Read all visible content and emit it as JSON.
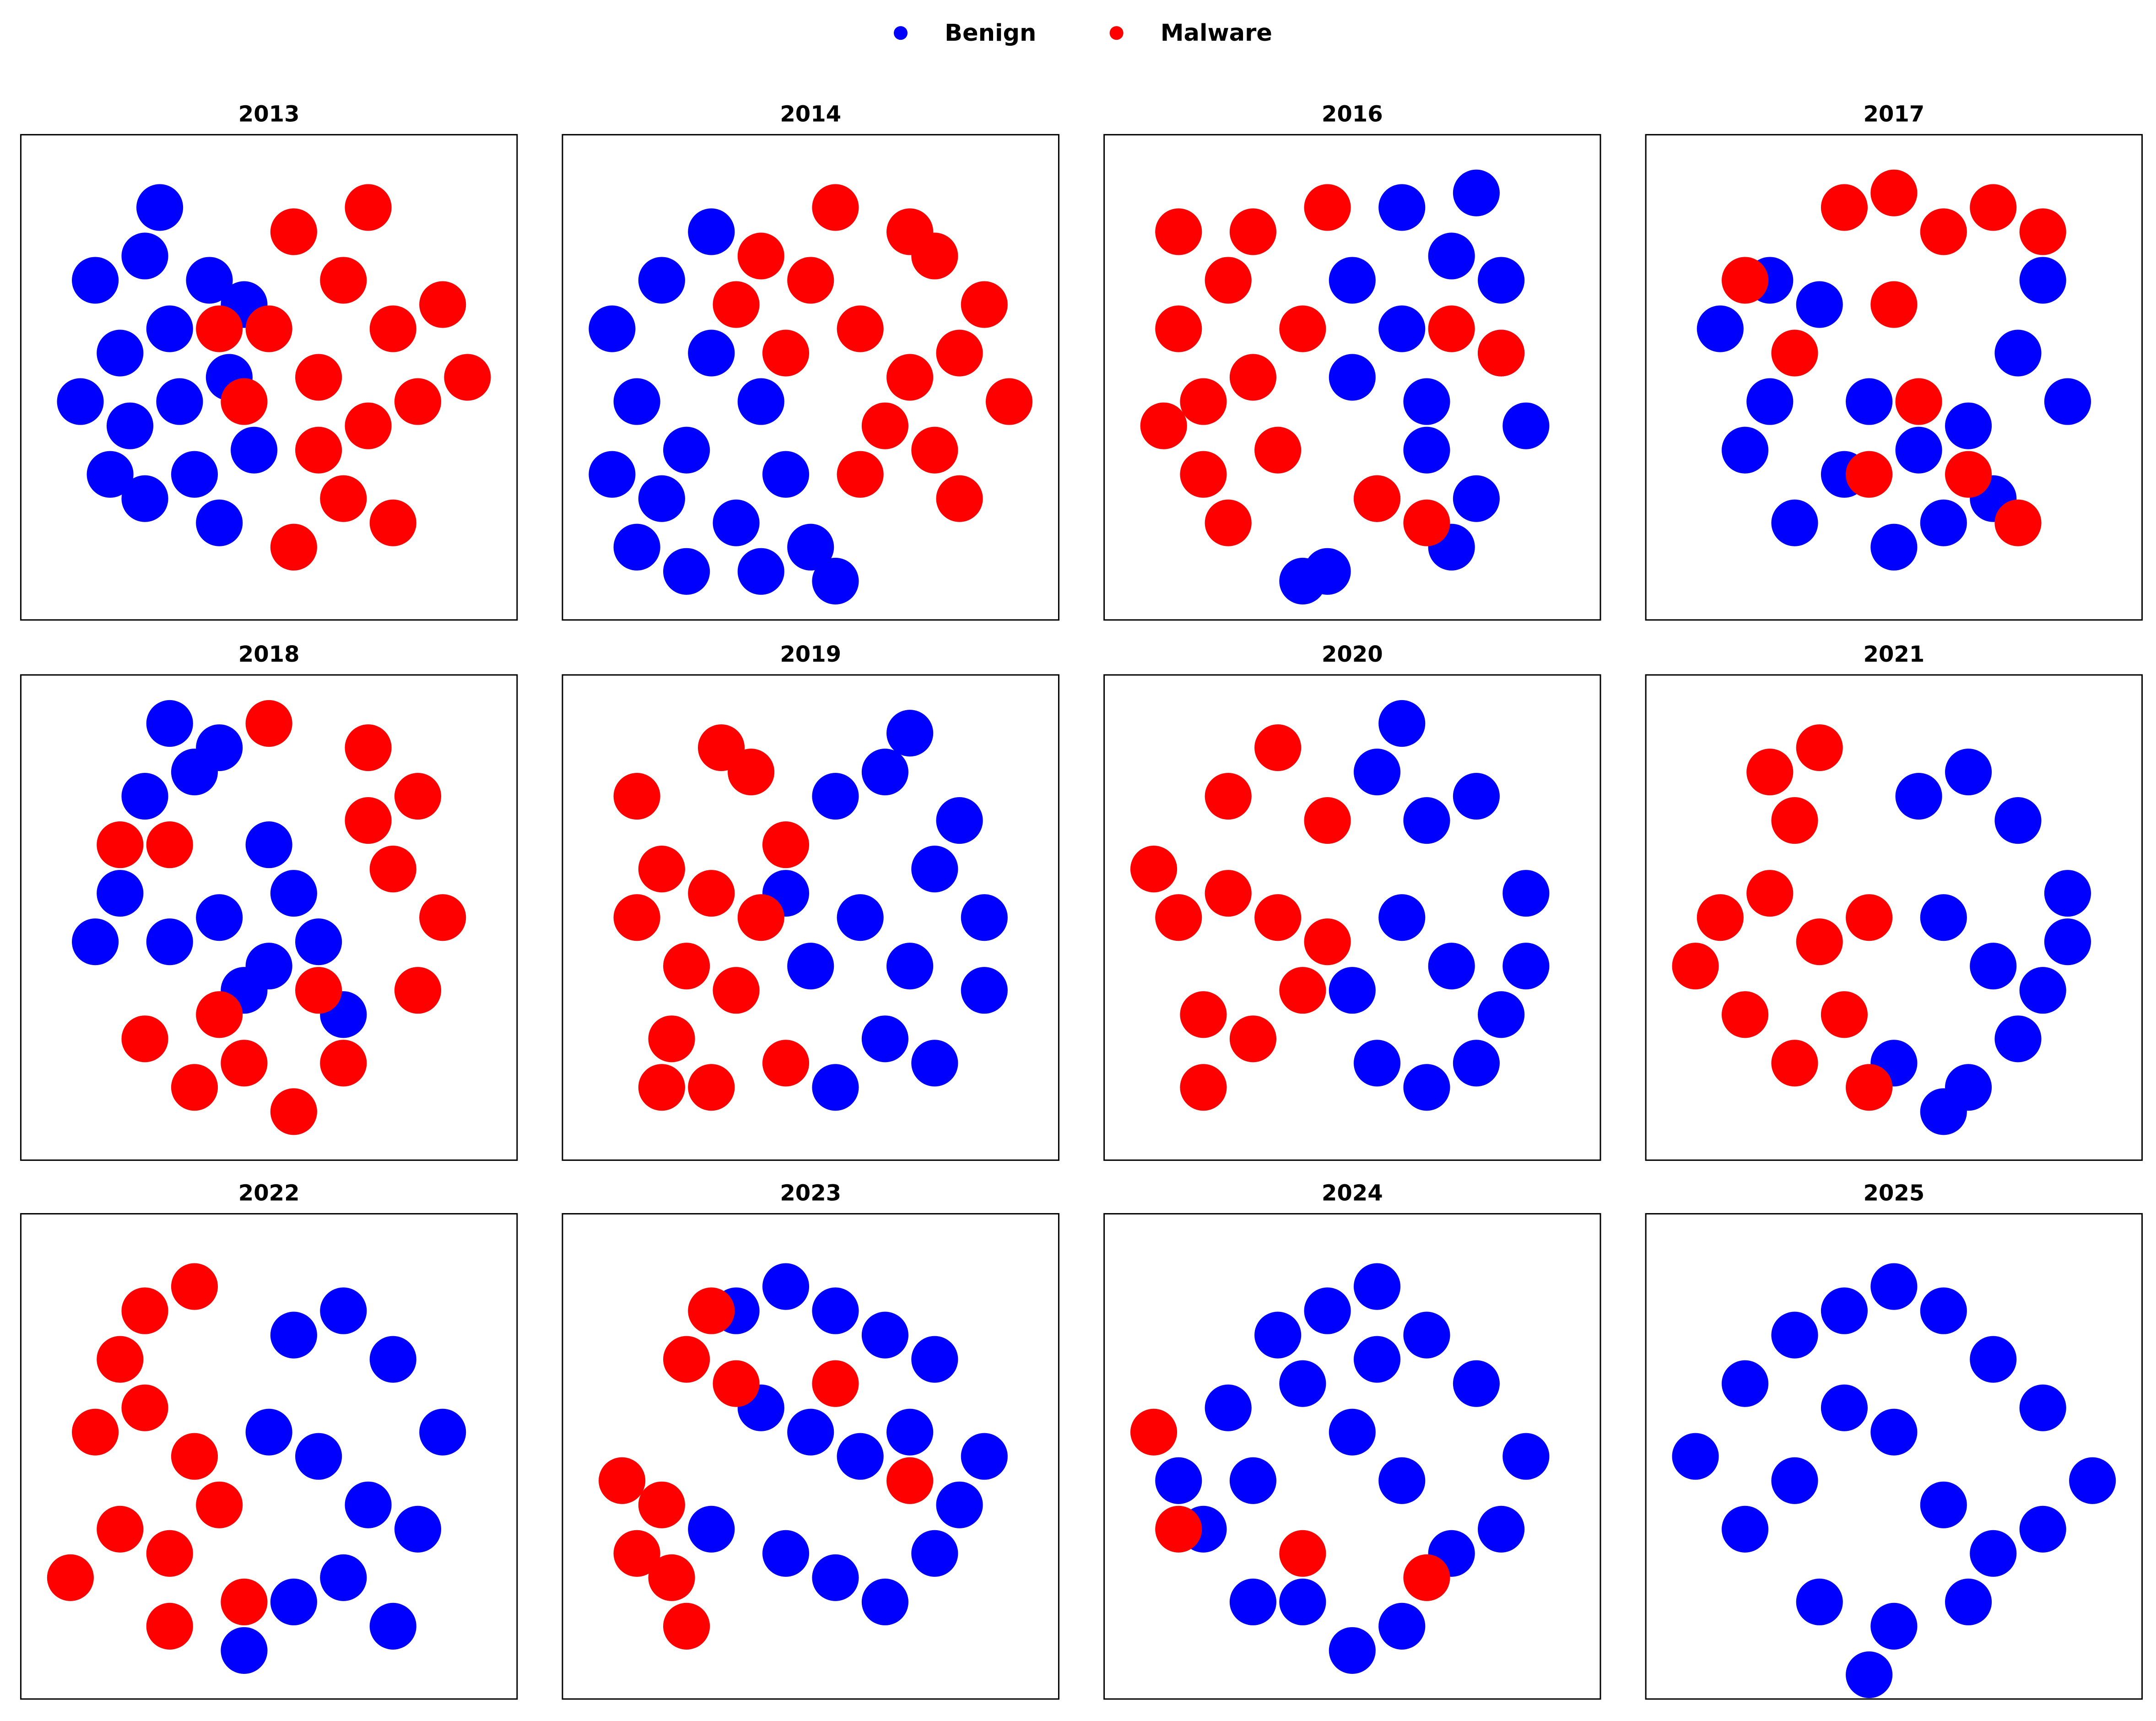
{
  "chart_data": [
    {
      "type": "scatter",
      "title": "2013",
      "xlim": [
        -50,
        50
      ],
      "ylim": [
        -50,
        50
      ],
      "series": [
        {
          "name": "Benign",
          "color": "#0000ff",
          "x": [
            -35,
            -30,
            -25,
            -20,
            -28,
            -18,
            -12,
            -15,
            -25,
            -8,
            -5,
            -10,
            -38,
            -22,
            -3,
            -32
          ],
          "y": [
            20,
            5,
            25,
            10,
            -10,
            -5,
            20,
            -20,
            -25,
            0,
            15,
            -30,
            -5,
            35,
            -15,
            -20
          ]
        },
        {
          "name": "Malware",
          "color": "#ff0000",
          "x": [
            5,
            15,
            25,
            10,
            20,
            30,
            35,
            15,
            5,
            25,
            0,
            -10,
            40,
            20,
            10,
            -5
          ],
          "y": [
            30,
            20,
            10,
            0,
            -10,
            -5,
            15,
            -25,
            -35,
            -30,
            10,
            10,
            0,
            35,
            -15,
            -5
          ]
        }
      ]
    },
    {
      "type": "scatter",
      "title": "2014",
      "xlim": [
        -50,
        50
      ],
      "ylim": [
        -50,
        50
      ],
      "series": [
        {
          "name": "Benign",
          "color": "#0000ff",
          "x": [
            -40,
            -35,
            -30,
            -25,
            -20,
            -15,
            -10,
            -5,
            -30,
            -20,
            -10,
            0,
            -35,
            -25,
            5,
            -40
          ],
          "y": [
            10,
            -5,
            20,
            -15,
            5,
            -30,
            -40,
            -20,
            -25,
            30,
            -5,
            -35,
            -35,
            -40,
            -42,
            -20
          ]
        },
        {
          "name": "Malware",
          "color": "#ff0000",
          "x": [
            0,
            10,
            20,
            30,
            15,
            25,
            35,
            5,
            -10,
            -5,
            20,
            30,
            10,
            -15,
            40,
            25
          ],
          "y": [
            20,
            10,
            0,
            5,
            -10,
            -15,
            15,
            35,
            25,
            5,
            30,
            -25,
            -20,
            15,
            -5,
            25
          ]
        }
      ]
    },
    {
      "type": "scatter",
      "title": "2016",
      "xlim": [
        -50,
        50
      ],
      "ylim": [
        -50,
        50
      ],
      "series": [
        {
          "name": "Benign",
          "color": "#0000ff",
          "x": [
            0,
            10,
            20,
            30,
            35,
            15,
            5,
            25,
            -5,
            10,
            20,
            30,
            0,
            15,
            -10,
            25
          ],
          "y": [
            20,
            10,
            25,
            5,
            -10,
            -5,
            -25,
            -25,
            -40,
            35,
            -35,
            20,
            0,
            -15,
            -42,
            38
          ]
        },
        {
          "name": "Malware",
          "color": "#ff0000",
          "x": [
            -35,
            -30,
            -25,
            -20,
            -15,
            -30,
            -20,
            -25,
            -38,
            -10,
            5,
            20,
            -5,
            15,
            30,
            -35
          ],
          "y": [
            10,
            -5,
            20,
            0,
            -15,
            -20,
            30,
            -30,
            -10,
            10,
            -25,
            10,
            35,
            -30,
            5,
            30
          ]
        }
      ]
    },
    {
      "type": "scatter",
      "title": "2017",
      "xlim": [
        -50,
        50
      ],
      "ylim": [
        -50,
        50
      ],
      "series": [
        {
          "name": "Benign",
          "color": "#0000ff",
          "x": [
            -35,
            -25,
            -15,
            -5,
            5,
            15,
            25,
            35,
            -30,
            -20,
            -10,
            10,
            20,
            30,
            0,
            -25
          ],
          "y": [
            10,
            20,
            15,
            -5,
            -15,
            -10,
            5,
            -5,
            -15,
            -30,
            -20,
            -30,
            -25,
            20,
            -35,
            -5
          ]
        },
        {
          "name": "Malware",
          "color": "#ff0000",
          "x": [
            -10,
            0,
            10,
            20,
            -20,
            5,
            -5,
            15,
            25,
            -30,
            30,
            0
          ],
          "y": [
            35,
            38,
            30,
            35,
            5,
            -5,
            -20,
            -20,
            -30,
            20,
            30,
            15
          ]
        }
      ]
    },
    {
      "type": "scatter",
      "title": "2018",
      "xlim": [
        -50,
        50
      ],
      "ylim": [
        -50,
        50
      ],
      "series": [
        {
          "name": "Benign",
          "color": "#0000ff",
          "x": [
            -30,
            -20,
            -10,
            0,
            10,
            -25,
            -15,
            -5,
            5,
            -35,
            -10,
            0,
            -20,
            15
          ],
          "y": [
            5,
            -5,
            0,
            -10,
            -5,
            25,
            30,
            -15,
            5,
            -5,
            35,
            15,
            40,
            -20
          ]
        },
        {
          "name": "Malware",
          "color": "#ff0000",
          "x": [
            -25,
            -15,
            -5,
            5,
            15,
            25,
            35,
            20,
            30,
            10,
            -10,
            0,
            -30,
            30,
            -20,
            20
          ],
          "y": [
            -25,
            -35,
            -30,
            -40,
            -30,
            10,
            0,
            20,
            -15,
            -15,
            -20,
            40,
            15,
            25,
            15,
            35
          ]
        }
      ]
    },
    {
      "type": "scatter",
      "title": "2019",
      "xlim": [
        -50,
        50
      ],
      "ylim": [
        -50,
        50
      ],
      "series": [
        {
          "name": "Benign",
          "color": "#0000ff",
          "x": [
            5,
            15,
            25,
            35,
            10,
            20,
            30,
            0,
            15,
            25,
            5,
            35,
            -5,
            20
          ],
          "y": [
            25,
            30,
            10,
            0,
            0,
            -10,
            20,
            -10,
            -25,
            -30,
            -35,
            -15,
            5,
            38
          ]
        },
        {
          "name": "Malware",
          "color": "#ff0000",
          "x": [
            -35,
            -30,
            -25,
            -20,
            -15,
            -10,
            -28,
            -18,
            -12,
            -35,
            -5,
            -20,
            -5,
            -30
          ],
          "y": [
            0,
            10,
            -10,
            5,
            -15,
            0,
            -25,
            35,
            30,
            25,
            -30,
            -35,
            15,
            -35
          ]
        }
      ]
    },
    {
      "type": "scatter",
      "title": "2020",
      "xlim": [
        -50,
        50
      ],
      "ylim": [
        -50,
        50
      ],
      "series": [
        {
          "name": "Benign",
          "color": "#0000ff",
          "x": [
            5,
            15,
            25,
            35,
            10,
            20,
            30,
            5,
            15,
            25,
            0,
            35,
            10
          ],
          "y": [
            30,
            20,
            25,
            5,
            0,
            -10,
            -20,
            -30,
            -35,
            -30,
            -15,
            -10,
            40
          ]
        },
        {
          "name": "Malware",
          "color": "#ff0000",
          "x": [
            -35,
            -25,
            -15,
            -5,
            -30,
            -20,
            -10,
            -25,
            -15,
            -40,
            -5,
            -30
          ],
          "y": [
            0,
            5,
            0,
            -5,
            -20,
            -25,
            -15,
            25,
            35,
            10,
            20,
            -35
          ]
        }
      ]
    },
    {
      "type": "scatter",
      "title": "2021",
      "xlim": [
        -50,
        50
      ],
      "ylim": [
        -50,
        50
      ],
      "series": [
        {
          "name": "Benign",
          "color": "#0000ff",
          "x": [
            5,
            15,
            25,
            35,
            10,
            20,
            30,
            0,
            15,
            25,
            10,
            35
          ],
          "y": [
            25,
            30,
            20,
            5,
            0,
            -10,
            -15,
            -30,
            -35,
            -25,
            -40,
            -5
          ]
        },
        {
          "name": "Malware",
          "color": "#ff0000",
          "x": [
            -35,
            -25,
            -15,
            -5,
            -30,
            -20,
            -10,
            -25,
            -15,
            -5,
            -40,
            -20
          ],
          "y": [
            0,
            5,
            -5,
            0,
            -20,
            -30,
            -20,
            30,
            35,
            -35,
            -10,
            20
          ]
        }
      ]
    },
    {
      "type": "scatter",
      "title": "2022",
      "xlim": [
        -50,
        50
      ],
      "ylim": [
        -50,
        50
      ],
      "series": [
        {
          "name": "Benign",
          "color": "#0000ff",
          "x": [
            5,
            15,
            25,
            35,
            0,
            10,
            20,
            30,
            5,
            15,
            25,
            -5
          ],
          "y": [
            25,
            30,
            20,
            5,
            5,
            0,
            -10,
            -15,
            -30,
            -25,
            -35,
            -40
          ]
        },
        {
          "name": "Malware",
          "color": "#ff0000",
          "x": [
            -35,
            -25,
            -15,
            -30,
            -20,
            -10,
            -25,
            -15,
            -40,
            -5,
            -20,
            -30
          ],
          "y": [
            5,
            10,
            0,
            -15,
            -20,
            -10,
            30,
            35,
            -25,
            -30,
            -35,
            20
          ]
        }
      ]
    },
    {
      "type": "scatter",
      "title": "2023",
      "xlim": [
        -50,
        50
      ],
      "ylim": [
        -50,
        50
      ],
      "series": [
        {
          "name": "Benign",
          "color": "#0000ff",
          "x": [
            -15,
            -5,
            5,
            15,
            25,
            35,
            -10,
            0,
            10,
            20,
            30,
            -5,
            5,
            15,
            25,
            -20
          ],
          "y": [
            30,
            35,
            30,
            25,
            20,
            0,
            10,
            5,
            0,
            5,
            -10,
            -20,
            -25,
            -30,
            -20,
            -15
          ]
        },
        {
          "name": "Malware",
          "color": "#ff0000",
          "x": [
            -38,
            -30,
            -35,
            -28,
            -25,
            -15,
            5,
            20,
            -20,
            -25
          ],
          "y": [
            -5,
            -10,
            -20,
            -25,
            -35,
            15,
            15,
            -5,
            30,
            20
          ]
        }
      ]
    },
    {
      "type": "scatter",
      "title": "2024",
      "xlim": [
        -50,
        50
      ],
      "ylim": [
        -50,
        50
      ],
      "series": [
        {
          "name": "Benign",
          "color": "#0000ff",
          "x": [
            -35,
            -25,
            -15,
            -5,
            5,
            15,
            25,
            35,
            -30,
            -20,
            -10,
            0,
            10,
            20,
            30,
            -10,
            0,
            -20,
            10,
            5
          ],
          "y": [
            -5,
            10,
            25,
            30,
            35,
            25,
            15,
            0,
            -15,
            -5,
            15,
            5,
            -5,
            -20,
            -15,
            -30,
            -40,
            -30,
            -35,
            20
          ]
        },
        {
          "name": "Malware",
          "color": "#ff0000",
          "x": [
            -40,
            -35,
            -10,
            15
          ],
          "y": [
            5,
            -15,
            -20,
            -25
          ]
        }
      ]
    },
    {
      "type": "scatter",
      "title": "2025",
      "xlim": [
        -50,
        50
      ],
      "ylim": [
        -50,
        50
      ],
      "series": [
        {
          "name": "Benign",
          "color": "#0000ff",
          "x": [
            -40,
            -30,
            -20,
            -10,
            0,
            10,
            20,
            30,
            40,
            -30,
            -20,
            -10,
            0,
            10,
            20,
            30,
            -15,
            0,
            15,
            -5
          ],
          "y": [
            0,
            15,
            25,
            30,
            35,
            30,
            20,
            10,
            -5,
            -15,
            -5,
            10,
            5,
            -10,
            -20,
            -15,
            -30,
            -35,
            -30,
            -45
          ]
        },
        {
          "name": "Malware",
          "color": "#ff0000",
          "x": [],
          "y": []
        }
      ]
    }
  ]
}
